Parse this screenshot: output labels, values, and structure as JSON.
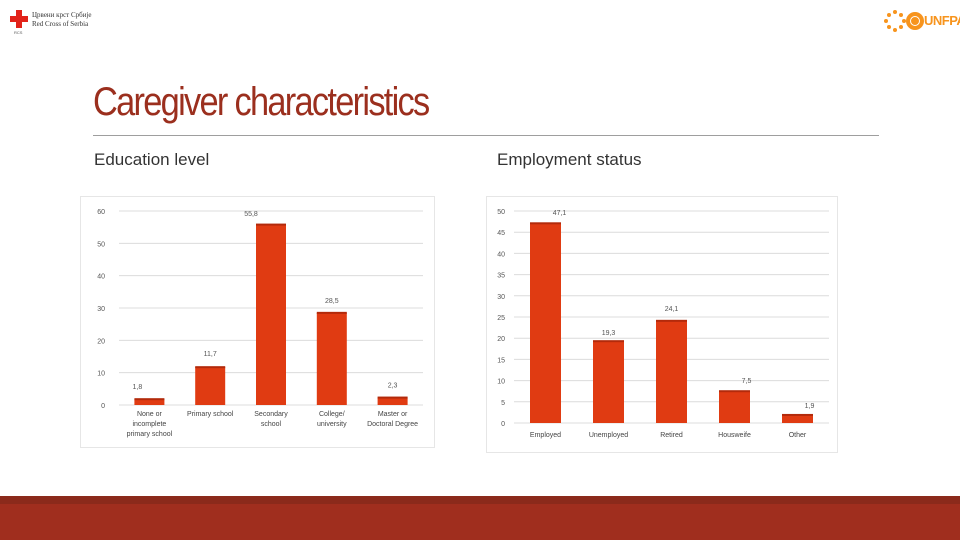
{
  "header": {
    "left_logo_line1": "Црвени крст Србије",
    "left_logo_line2": "Red Cross of Serbia",
    "left_logo_small": "RCS",
    "right_logo_text": "UNFPA",
    "logo_colors": {
      "red_cross": "#e2231a",
      "unfpa": "#f7941d"
    }
  },
  "slide": {
    "title": "Caregiver characteristics",
    "title_color": "#9b2f1e",
    "footer_color": "#a02e1e"
  },
  "sections": {
    "education_title": "Education level",
    "employment_title": "Employment status"
  },
  "chart_data": [
    {
      "type": "bar",
      "categories": [
        "None or incomplete primary school",
        "Primary school",
        "Secondary school",
        "College/ university",
        "Master or Doctoral Degree"
      ],
      "category_lines": [
        [
          "None or",
          "incomplete",
          "primary school"
        ],
        [
          "Primary school"
        ],
        [
          "Secondary",
          "school"
        ],
        [
          "College/",
          "university"
        ],
        [
          "Master or",
          "Doctoral Degree"
        ]
      ],
      "values": [
        1.8,
        11.7,
        55.8,
        28.5,
        2.3
      ],
      "value_labels": [
        "1,8",
        "11,7",
        "55,8",
        "28,5",
        "2,3"
      ],
      "yticks": [
        0,
        10,
        20,
        30,
        40,
        50,
        60
      ],
      "ylim": [
        0,
        60
      ],
      "grid": true,
      "bar_color": "#e03b12"
    },
    {
      "type": "bar",
      "categories": [
        "Employed",
        "Unemployed",
        "Retired",
        "Housweife",
        "Other"
      ],
      "category_lines": [
        [
          "Employed"
        ],
        [
          "Unemployed"
        ],
        [
          "Retired"
        ],
        [
          "Housweife"
        ],
        [
          "Other"
        ]
      ],
      "values": [
        47.1,
        19.3,
        24.1,
        7.5,
        1.9
      ],
      "value_labels": [
        "47,1",
        "19,3",
        "24,1",
        "7,5",
        "1,9"
      ],
      "yticks": [
        0,
        5,
        10,
        15,
        20,
        25,
        30,
        35,
        40,
        45,
        50
      ],
      "ylim": [
        0,
        50
      ],
      "grid": true,
      "bar_color": "#e03b12"
    }
  ]
}
